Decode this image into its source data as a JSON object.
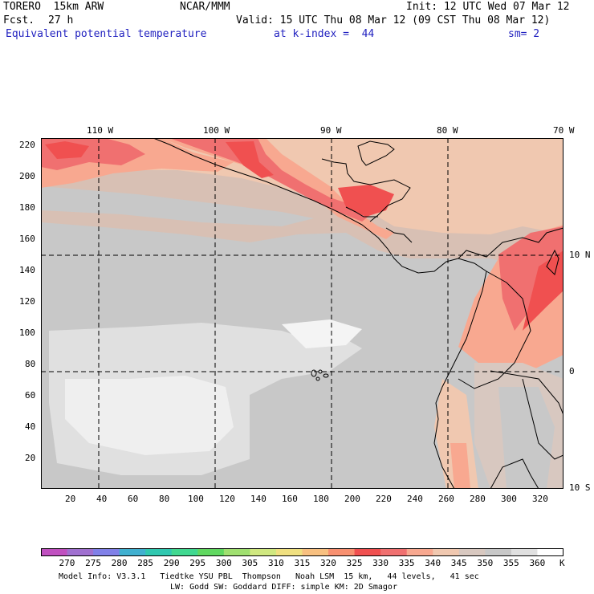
{
  "header": {
    "model": "TORERO  15km ARW",
    "org": "NCAR/MMM",
    "init": "Init: 12 UTC Wed 07 Mar 12",
    "fcst_label": "Fcst.",
    "fcst_value": "27 h",
    "valid": "Valid: 15 UTC Thu 08 Mar 12 (09 CST Thu 08 Mar 12)",
    "field": "Equivalent potential temperature",
    "level": "at k-index =  44",
    "smooth": "sm= 2"
  },
  "map": {
    "top_lon_labels": [
      "110 W",
      "100 W",
      "90 W",
      "80 W",
      "70 W"
    ],
    "right_lat_labels": [
      "10 N",
      "0",
      "10 S"
    ],
    "y_ticks": [
      "220",
      "200",
      "180",
      "160",
      "140",
      "120",
      "100",
      "80",
      "60",
      "40",
      "20"
    ],
    "x_ticks": [
      "20",
      "40",
      "60",
      "80",
      "100",
      "120",
      "140",
      "160",
      "180",
      "200",
      "220",
      "240",
      "260",
      "280",
      "300",
      "320"
    ]
  },
  "colorbar": {
    "labels": [
      "270",
      "275",
      "280",
      "285",
      "290",
      "295",
      "300",
      "305",
      "310",
      "315",
      "320",
      "325",
      "330",
      "335",
      "340",
      "345",
      "350",
      "355",
      "360"
    ],
    "unit": "K",
    "colors": [
      "#c050c0",
      "#a070d0",
      "#8080e8",
      "#40b0d0",
      "#30c8b0",
      "#40d890",
      "#60d860",
      "#a0e070",
      "#d0e880",
      "#f0e080",
      "#f8c080",
      "#f89070",
      "#f05050",
      "#f07070",
      "#f8a890",
      "#f0c8b0",
      "#d8c8c0",
      "#c8c8c8",
      "#e0e0e0",
      "#ffffff"
    ]
  },
  "footer": {
    "line1": "Model Info: V3.3.1   Tiedtke YSU PBL  Thompson   Noah LSM  15 km,   44 levels,   41 sec",
    "line2": "LW: Godd SW: Goddard DIFF: simple KM: 2D Smagor"
  }
}
